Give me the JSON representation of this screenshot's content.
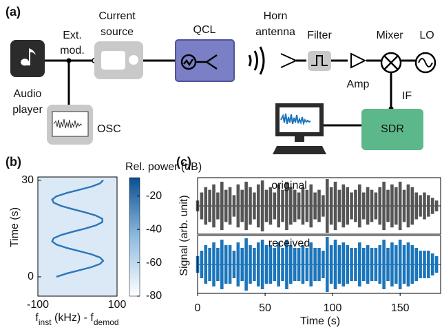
{
  "panel_labels": [
    "(a)",
    "(b)",
    "(c)"
  ],
  "diagram": {
    "audio_player": [
      "Audio",
      "player"
    ],
    "ext_mod": [
      "Ext.",
      "mod."
    ],
    "current_source": [
      "Current",
      "source"
    ],
    "qcl": "QCL",
    "horn_antenna": [
      "Horn",
      "antenna"
    ],
    "filter": "Filter",
    "mixer": "Mixer",
    "lo": "LO",
    "amp": "Amp",
    "if": "IF",
    "osc": "OSC",
    "sdr": "SDR"
  },
  "chart_data": [
    {
      "type": "heatmap",
      "colorbar_label": "Rel. power (dB)",
      "x_label": [
        {
          "text": "f"
        },
        {
          "text": "inst",
          "sub": true
        },
        {
          "text": " (kHz) - f"
        },
        {
          "text": "demod",
          "sub": true
        }
      ],
      "y_label": "Time (s)",
      "xlim": [
        -100,
        100
      ],
      "xticks": [
        -100,
        100
      ],
      "ylim": [
        -6,
        31
      ],
      "yticks": [
        0,
        30
      ],
      "clim": [
        -80,
        -9
      ],
      "cticks": [
        -20,
        -40,
        -60,
        -80
      ],
      "background_color": "#dbe9f7",
      "color": "#2f78b8",
      "x": [
        -53,
        -28,
        4,
        35,
        57,
        65,
        57,
        35,
        4,
        -28,
        -53,
        -64,
        -60,
        -41,
        -12,
        20,
        47,
        63,
        63,
        47,
        20,
        -12,
        -41,
        -60,
        -64,
        -53,
        -28,
        4,
        35,
        57,
        65
      ],
      "y": [
        0,
        1,
        2,
        3,
        4,
        5,
        6,
        7,
        8,
        9,
        10,
        11,
        12,
        13,
        14,
        15,
        16,
        17,
        18,
        19,
        20,
        21,
        22,
        23,
        24,
        25,
        26,
        27,
        28,
        29,
        30
      ]
    },
    {
      "type": "waveform",
      "x_label": "Time (s)",
      "y_label": "Signal (arb. unit)",
      "xlim": [
        0,
        180
      ],
      "xticks": [
        0,
        50,
        100,
        150
      ],
      "ylim": [
        -1,
        1
      ],
      "x": [
        0,
        3,
        6,
        9,
        12,
        15,
        18,
        21,
        24,
        27,
        30,
        33,
        36,
        39,
        42,
        45,
        48,
        51,
        54,
        57,
        60,
        63,
        66,
        69,
        72,
        75,
        78,
        81,
        84,
        87,
        90,
        93,
        96,
        99,
        102,
        105,
        108,
        111,
        114,
        117,
        120,
        123,
        126,
        129,
        132,
        135,
        138,
        141,
        144,
        147,
        150,
        153,
        156,
        159,
        162,
        165,
        168,
        171,
        174,
        177
      ],
      "series": [
        {
          "name": "original",
          "color": "#555555",
          "values": [
            0.2,
            0.5,
            0.7,
            0.6,
            0.8,
            0.5,
            0.9,
            0.6,
            0.7,
            0.4,
            0.8,
            0.6,
            0.9,
            0.7,
            0.5,
            0.8,
            0.95,
            0.6,
            0.7,
            0.5,
            0.8,
            0.6,
            0.9,
            0.7,
            0.6,
            0.5,
            0.7,
            0.6,
            0.8,
            0.5,
            0.6,
            0.4,
            1.0,
            0.7,
            0.9,
            0.6,
            0.8,
            0.7,
            0.5,
            0.6,
            0.8,
            0.5,
            0.7,
            0.6,
            0.5,
            0.7,
            0.9,
            0.6,
            0.8,
            0.7,
            0.9,
            0.6,
            0.8,
            0.7,
            0.5,
            0.4,
            0.5,
            0.4,
            0.3,
            0.2
          ]
        },
        {
          "name": "received",
          "color": "#1b75bb",
          "values": [
            0.3,
            0.5,
            0.7,
            0.6,
            0.8,
            0.6,
            0.9,
            0.7,
            0.7,
            0.5,
            0.8,
            0.6,
            0.95,
            0.7,
            0.6,
            0.8,
            0.9,
            0.7,
            0.7,
            0.6,
            0.8,
            0.6,
            0.9,
            0.7,
            0.6,
            0.6,
            0.7,
            0.6,
            0.8,
            0.6,
            0.6,
            0.5,
            1.0,
            0.7,
            0.9,
            0.7,
            0.8,
            0.7,
            0.6,
            0.6,
            0.8,
            0.6,
            0.7,
            0.6,
            0.6,
            0.7,
            0.9,
            0.6,
            0.8,
            0.7,
            0.9,
            0.7,
            0.8,
            0.7,
            0.6,
            0.5,
            0.5,
            0.5,
            0.4,
            0.3
          ]
        }
      ]
    }
  ]
}
